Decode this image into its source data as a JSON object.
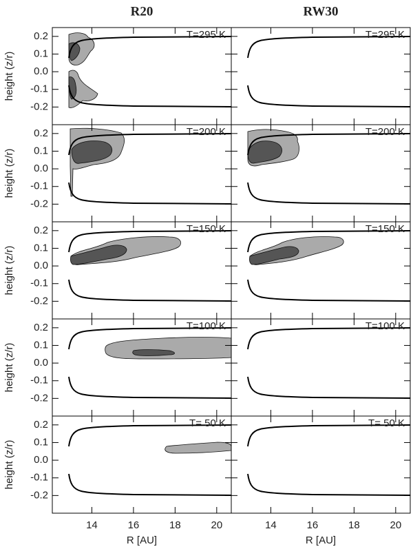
{
  "chart_data": {
    "type": "contour",
    "columns": [
      "R20",
      "RW30"
    ],
    "panel_labels": [
      [
        "T=295 K",
        "T=295 K"
      ],
      [
        "T=200 K",
        "T=200 K"
      ],
      [
        "T=150 K",
        "T=150 K"
      ],
      [
        "T=100 K",
        "T=100 K"
      ],
      [
        "T= 50 K",
        "T= 50 K"
      ]
    ],
    "x_label": "R [AU]",
    "y_label": "height (z/r)",
    "xlim": [
      12.1,
      20.7
    ],
    "xticks": [
      14,
      16,
      18,
      20
    ],
    "ylim": [
      -0.3,
      0.25
    ],
    "yticks": [
      -0.2,
      -0.1,
      {
        "value": 0,
        "label": "0.0"
      },
      0.1,
      0.2
    ]
  }
}
